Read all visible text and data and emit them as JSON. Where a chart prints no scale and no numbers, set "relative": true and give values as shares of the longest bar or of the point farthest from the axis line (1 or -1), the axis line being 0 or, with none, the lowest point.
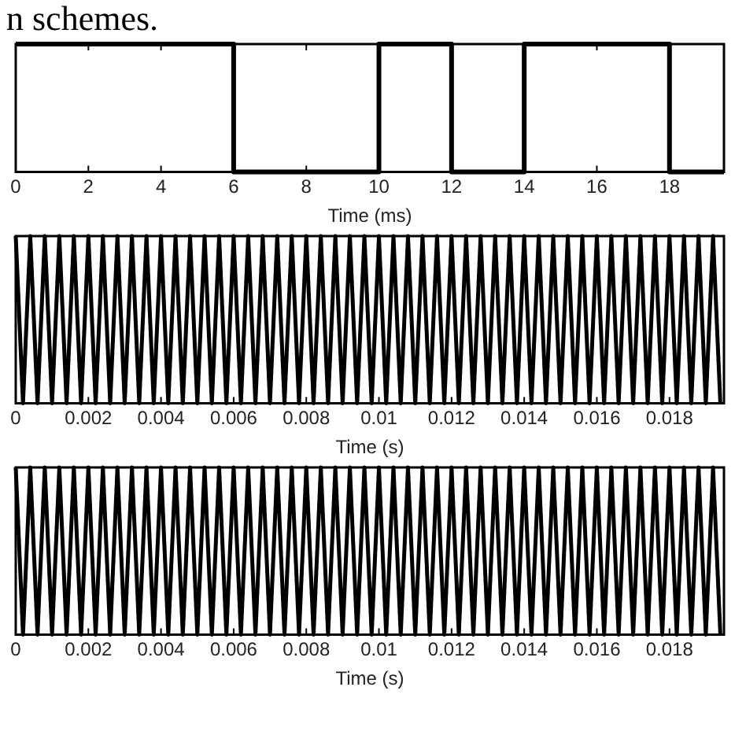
{
  "chart_data": [
    {
      "type": "step",
      "relative": true,
      "annotations": [
        "n schemes."
      ],
      "x": [
        0,
        6,
        10,
        12,
        14,
        18,
        19.5
      ],
      "values": [
        1,
        0,
        1,
        0,
        1,
        0,
        0
      ],
      "color": "#000000",
      "xlim": [
        0,
        19.5
      ],
      "xticks": [
        0,
        2,
        4,
        6,
        8,
        10,
        12,
        14,
        16,
        18
      ],
      "xlabel": "Time (ms)",
      "tick_labels": "x",
      "legend": false
    },
    {
      "type": "line",
      "relative": true,
      "x": [
        0,
        0.0002,
        0.0004,
        0.0006,
        0.0008,
        0.001,
        0.0012,
        0.0014,
        0.0016,
        0.0018,
        0.002,
        0.0022,
        0.0024,
        0.0026,
        0.0028,
        0.003,
        0.0032,
        0.0034,
        0.0036,
        0.0038,
        0.004,
        0.0042,
        0.0044,
        0.0046,
        0.0048,
        0.005,
        0.0052,
        0.0054,
        0.0056,
        0.0058,
        0.006,
        0.0062,
        0.0064,
        0.0066,
        0.0068,
        0.007,
        0.0072,
        0.0074,
        0.0076,
        0.0078,
        0.008,
        0.0082,
        0.0084,
        0.0086,
        0.0088,
        0.009,
        0.0092,
        0.0094,
        0.0096,
        0.0098,
        0.01,
        0.0102,
        0.0104,
        0.0106,
        0.0108,
        0.011,
        0.0112,
        0.0114,
        0.0116,
        0.0118,
        0.012,
        0.0122,
        0.0124,
        0.0126,
        0.0128,
        0.013,
        0.0132,
        0.0134,
        0.0136,
        0.0138,
        0.014,
        0.0142,
        0.0144,
        0.0146,
        0.0148,
        0.015,
        0.0152,
        0.0154,
        0.0156,
        0.0158,
        0.016,
        0.0162,
        0.0164,
        0.0166,
        0.0168,
        0.017,
        0.0172,
        0.0174,
        0.0176,
        0.0178,
        0.018,
        0.0182,
        0.0184,
        0.0186,
        0.0188,
        0.019,
        0.0192,
        0.0194
      ],
      "values": [
        1,
        0,
        1,
        0,
        1,
        0,
        1,
        0,
        1,
        0,
        1,
        0,
        1,
        0,
        1,
        0,
        1,
        0,
        1,
        0,
        1,
        0,
        1,
        0,
        1,
        0,
        1,
        0,
        1,
        0,
        1,
        0,
        1,
        0,
        1,
        0,
        1,
        0,
        1,
        0,
        1,
        0,
        1,
        0,
        1,
        0,
        1,
        0,
        1,
        0,
        1,
        0,
        1,
        0,
        1,
        0,
        1,
        0,
        1,
        0,
        1,
        0,
        1,
        0,
        1,
        0,
        1,
        0,
        1,
        0,
        1,
        0,
        1,
        0,
        1,
        0,
        1,
        0,
        1,
        0,
        1,
        0,
        1,
        0,
        1,
        0,
        1,
        0,
        1,
        0,
        1,
        0,
        1,
        0,
        1,
        0,
        1,
        0
      ],
      "color": "#000000",
      "xlim": [
        0,
        0.0195
      ],
      "xticks": [
        0,
        0.002,
        0.004,
        0.006,
        0.008,
        0.01,
        0.012,
        0.014,
        0.016,
        0.018
      ],
      "xlabel": "Time (s)",
      "tick_labels": "x",
      "legend": false
    },
    {
      "type": "line",
      "relative": true,
      "x": [
        0,
        0.0002,
        0.0004,
        0.0006,
        0.0008,
        0.001,
        0.0012,
        0.0014,
        0.0016,
        0.0018,
        0.002,
        0.0022,
        0.0024,
        0.0026,
        0.0028,
        0.003,
        0.0032,
        0.0034,
        0.0036,
        0.0038,
        0.004,
        0.0042,
        0.0044,
        0.0046,
        0.0048,
        0.005,
        0.0052,
        0.0054,
        0.0056,
        0.0058,
        0.006,
        0.0062,
        0.0064,
        0.0066,
        0.0068,
        0.007,
        0.0072,
        0.0074,
        0.0076,
        0.0078,
        0.008,
        0.0082,
        0.0084,
        0.0086,
        0.0088,
        0.009,
        0.0092,
        0.0094,
        0.0096,
        0.0098,
        0.01,
        0.0102,
        0.0104,
        0.0106,
        0.0108,
        0.011,
        0.0112,
        0.0114,
        0.0116,
        0.0118,
        0.012,
        0.0122,
        0.0124,
        0.0126,
        0.0128,
        0.013,
        0.0132,
        0.0134,
        0.0136,
        0.0138,
        0.014,
        0.0142,
        0.0144,
        0.0146,
        0.0148,
        0.015,
        0.0152,
        0.0154,
        0.0156,
        0.0158,
        0.016,
        0.0162,
        0.0164,
        0.0166,
        0.0168,
        0.017,
        0.0172,
        0.0174,
        0.0176,
        0.0178,
        0.018,
        0.0182,
        0.0184,
        0.0186,
        0.0188,
        0.019,
        0.0192,
        0.0194
      ],
      "values": [
        1,
        0,
        1,
        0,
        1,
        0,
        1,
        0,
        1,
        0,
        1,
        0,
        1,
        0,
        1,
        0,
        1,
        0,
        1,
        0,
        1,
        0,
        1,
        0,
        1,
        0,
        1,
        0,
        1,
        0,
        1,
        0,
        1,
        0,
        1,
        0,
        1,
        0,
        1,
        0,
        1,
        0,
        1,
        0,
        1,
        0,
        1,
        0,
        1,
        0,
        1,
        0,
        1,
        0,
        1,
        0,
        1,
        0,
        1,
        0,
        1,
        0,
        1,
        0,
        1,
        0,
        1,
        0,
        1,
        0,
        1,
        0,
        1,
        0,
        1,
        0,
        1,
        0,
        1,
        0,
        1,
        0,
        1,
        0,
        1,
        0,
        1,
        0,
        1,
        0,
        1,
        0,
        1,
        0,
        1,
        0,
        1,
        0
      ],
      "color": "#000000",
      "xlim": [
        0,
        0.0195
      ],
      "xticks": [
        0,
        0.002,
        0.004,
        0.006,
        0.008,
        0.01,
        0.012,
        0.014,
        0.016,
        0.018
      ],
      "xlabel": "Time (s)",
      "tick_labels": "x",
      "legend": false
    }
  ]
}
